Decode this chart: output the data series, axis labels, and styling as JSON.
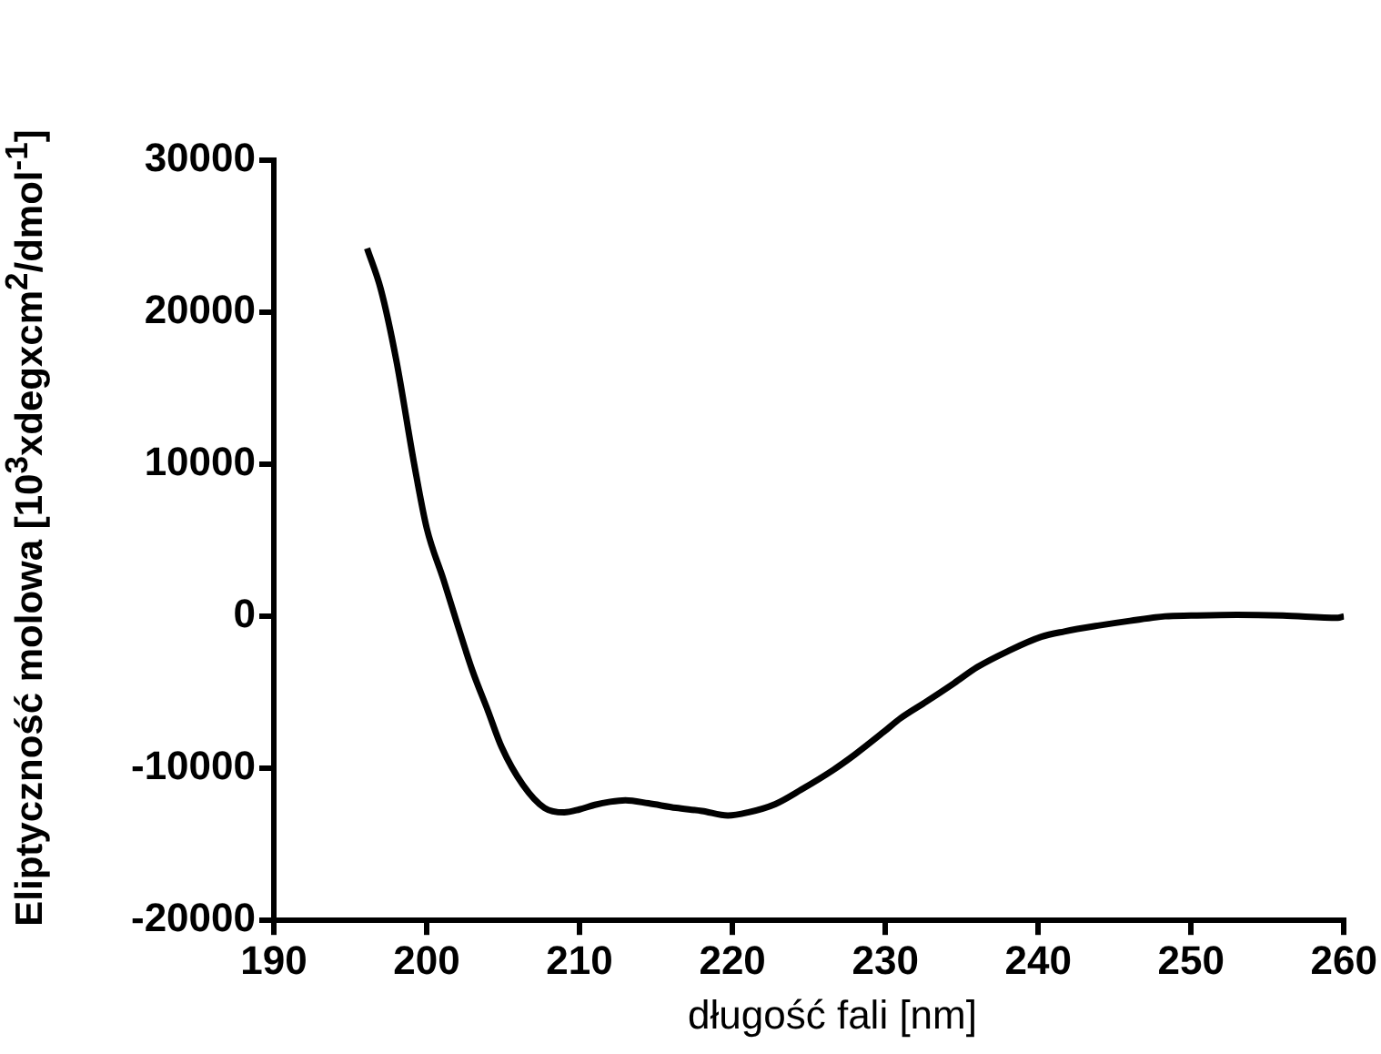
{
  "chart_data": {
    "type": "line",
    "xlabel": "długość fali [nm]",
    "ylabel": "Eliptyczność molowa [10$^{3}$xdegxcm$^{2}$/dmol$^{-1}$]",
    "x": [
      196.1,
      197,
      198,
      199.2,
      200,
      201.1,
      202,
      203,
      204,
      204.9,
      206.3,
      207.7,
      209,
      210,
      211,
      212,
      213,
      214.5,
      216.3,
      218,
      219.7,
      221,
      222.8,
      224.5,
      226.6,
      228,
      229.9,
      231,
      232.7,
      234.5,
      236,
      238,
      240.2,
      241.7,
      244,
      246,
      248.3,
      250,
      253,
      256,
      259.6,
      260
    ],
    "series": [
      {
        "color": "#000000",
        "values": [
          24200,
          21500,
          16900,
          9900,
          5800,
          2400,
          -500,
          -3600,
          -6200,
          -8600,
          -11100,
          -12600,
          -12900,
          -12700,
          -12400,
          -12200,
          -12100,
          -12300,
          -12600,
          -12800,
          -13100,
          -12900,
          -12350,
          -11400,
          -10100,
          -9100,
          -7600,
          -6700,
          -5600,
          -4400,
          -3350,
          -2300,
          -1350,
          -1000,
          -600,
          -300,
          0,
          50,
          100,
          50,
          -100,
          0
        ]
      }
    ],
    "xlim": [
      190,
      260
    ],
    "xticks": [
      190,
      200,
      210,
      220,
      230,
      240,
      250,
      260
    ],
    "ylim": [
      -20000,
      30000
    ],
    "yticks": [
      -20000,
      -10000,
      0,
      10000,
      20000,
      30000
    ],
    "grid": false,
    "legend": false,
    "marker": "none",
    "line_style": "solid"
  }
}
